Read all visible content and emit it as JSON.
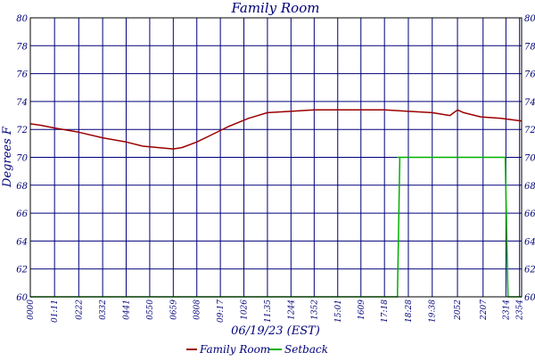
{
  "chart_data": {
    "type": "line",
    "title": "Family Room",
    "xlabel": "06/19/23 (EST)",
    "ylabel": "Degrees F",
    "ylim": [
      60,
      80
    ],
    "yticks": [
      60,
      62,
      64,
      66,
      68,
      70,
      72,
      74,
      76,
      78,
      80
    ],
    "xlim_minutes": [
      0,
      1440
    ],
    "x_tick_labels": [
      "0000",
      "01:11",
      "0222",
      "0332",
      "0441",
      "0550",
      "0659",
      "0808",
      "09:17",
      "1026",
      "11:35",
      "1244",
      "1352",
      "15:01",
      "1609",
      "17:18",
      "18:28",
      "19:38",
      "2052",
      "2207",
      "2314",
      "2354"
    ],
    "x_tick_minutes": [
      0,
      71,
      142,
      212,
      281,
      350,
      419,
      488,
      557,
      626,
      695,
      764,
      832,
      901,
      969,
      1038,
      1108,
      1178,
      1252,
      1327,
      1394,
      1434
    ],
    "grid": true,
    "legend_position": "bottom-center",
    "series": [
      {
        "name": "Family Room",
        "color": "#9b0000",
        "points": [
          [
            0,
            72.4
          ],
          [
            30,
            72.3
          ],
          [
            71,
            72.1
          ],
          [
            142,
            71.8
          ],
          [
            212,
            71.4
          ],
          [
            281,
            71.1
          ],
          [
            330,
            70.8
          ],
          [
            419,
            70.6
          ],
          [
            445,
            70.7
          ],
          [
            488,
            71.1
          ],
          [
            530,
            71.6
          ],
          [
            580,
            72.2
          ],
          [
            640,
            72.8
          ],
          [
            695,
            73.2
          ],
          [
            764,
            73.3
          ],
          [
            832,
            73.4
          ],
          [
            901,
            73.4
          ],
          [
            969,
            73.4
          ],
          [
            1038,
            73.4
          ],
          [
            1108,
            73.3
          ],
          [
            1178,
            73.2
          ],
          [
            1230,
            73.0
          ],
          [
            1252,
            73.4
          ],
          [
            1270,
            73.2
          ],
          [
            1320,
            72.9
          ],
          [
            1380,
            72.8
          ],
          [
            1440,
            72.6
          ]
        ]
      },
      {
        "name": "Setback",
        "color": "#00b000",
        "points": [
          [
            0,
            60
          ],
          [
            1076,
            60
          ],
          [
            1083,
            70
          ],
          [
            1076,
            70
          ],
          [
            1083,
            70
          ],
          [
            1392,
            70
          ],
          [
            1400,
            60
          ],
          [
            1440,
            60
          ]
        ]
      }
    ]
  }
}
